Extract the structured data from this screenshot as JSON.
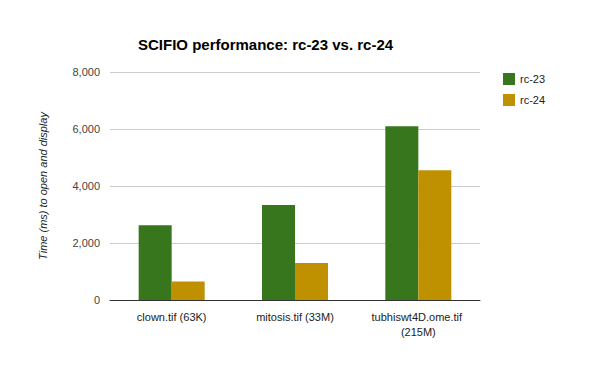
{
  "chart_data": {
    "type": "bar",
    "title": "SCIFIO performance: rc-23 vs. rc-24",
    "y_label": "Time (ms) to open and display",
    "categories": [
      "clown.tif (63K)",
      "mitosis.tif (33M)",
      "tubhiswt4D.ome.tif (215M)"
    ],
    "series": [
      {
        "name": "rc-23",
        "color": "#38761d",
        "values": [
          2620,
          3330,
          6100
        ]
      },
      {
        "name": "rc-24",
        "color": "#bf9000",
        "values": [
          650,
          1300,
          4550
        ]
      }
    ],
    "ylim": [
      0,
      8000
    ],
    "yticks": [
      0,
      2000,
      4000,
      6000,
      8000
    ],
    "grid": true,
    "legend": "right"
  }
}
